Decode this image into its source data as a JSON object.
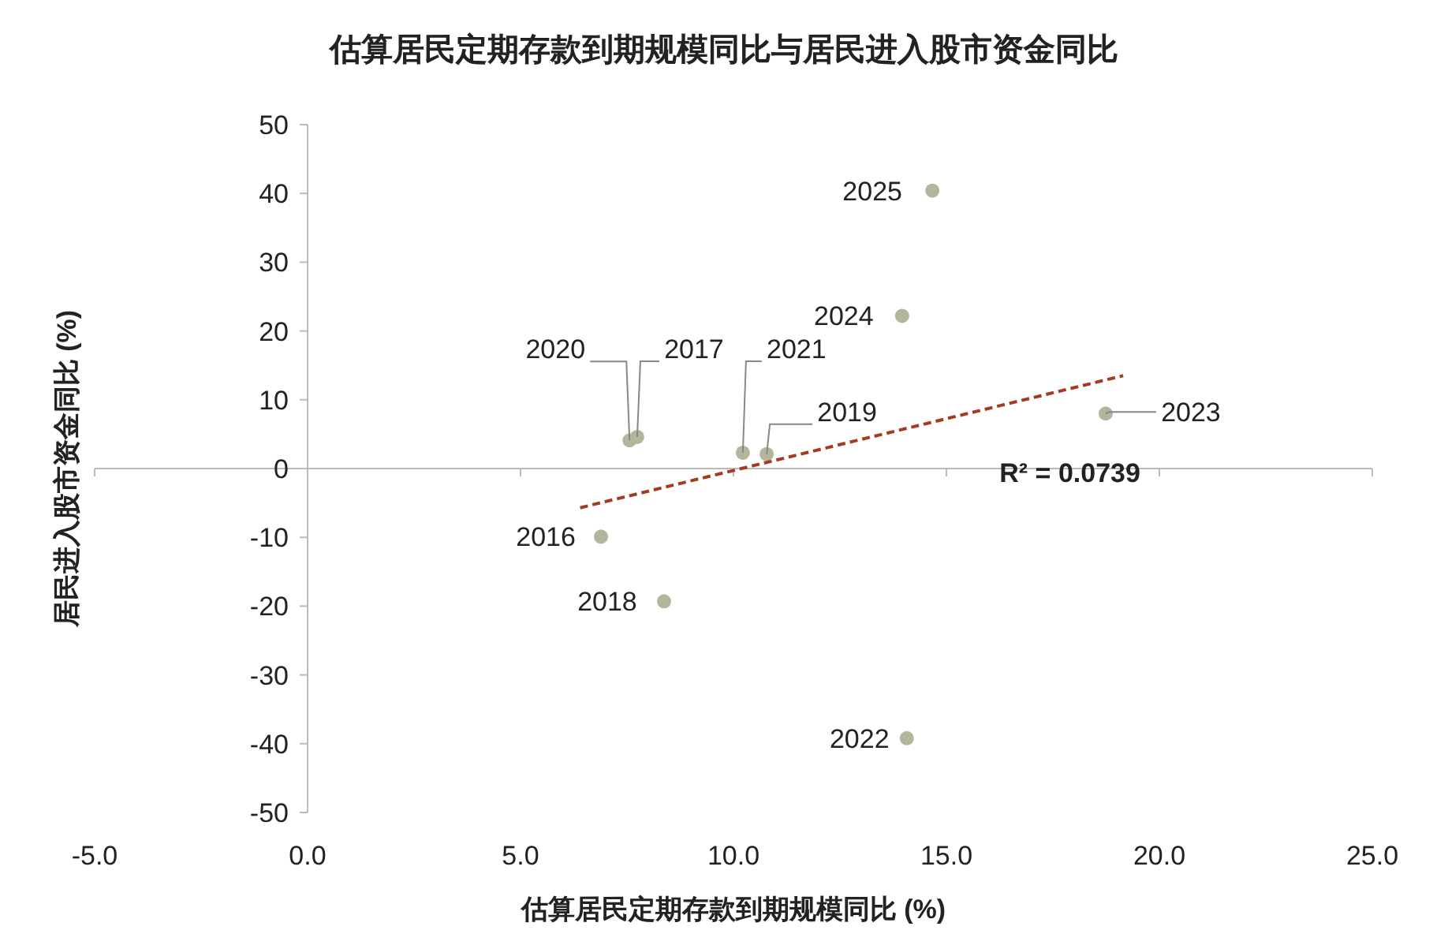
{
  "chart_data": {
    "type": "scatter",
    "title": "估算居民定期存款到期规模同比与居民进入股市资金同比",
    "xlabel": "估算居民定期存款到期规模同比 (%)",
    "ylabel": "居民进入股市资金同比 (%)",
    "xlim": [
      -5,
      25
    ],
    "xticks": [
      {
        "value": -5,
        "label": "-5.0"
      },
      {
        "value": 0,
        "label": "0.0"
      },
      {
        "value": 5,
        "label": "5.0"
      },
      {
        "value": 10,
        "label": "10.0"
      },
      {
        "value": 15,
        "label": "15.0"
      },
      {
        "value": 20,
        "label": "20.0"
      },
      {
        "value": 25,
        "label": "25.0"
      }
    ],
    "ylim": [
      -50,
      50
    ],
    "yticks": [
      -50,
      -40,
      -30,
      -20,
      -10,
      0,
      10,
      20,
      30,
      40,
      50
    ],
    "series": [
      {
        "marker": "circle",
        "color": "#b3b59c",
        "x": [
          6.89,
          7.74,
          8.37,
          10.78,
          7.56,
          10.22,
          14.07,
          18.74,
          13.96,
          14.67
        ],
        "values": [
          -9.9,
          4.6,
          -19.3,
          2.1,
          4.1,
          2.3,
          -39.2,
          8.0,
          22.2,
          40.4
        ]
      },
      {
        "type": "line",
        "line_style": "dashed",
        "color": "#a33b22",
        "x": [
          6.4,
          19.15
        ],
        "values": [
          -5.7,
          13.5
        ]
      }
    ],
    "annotations": [
      {
        "text": "2016",
        "x": 6.89,
        "y": -9.9
      },
      {
        "text": "2017",
        "x": 7.74,
        "y": 4.6
      },
      {
        "text": "2018",
        "x": 8.37,
        "y": -19.3
      },
      {
        "text": "2019",
        "x": 10.78,
        "y": 2.1
      },
      {
        "text": "2020",
        "x": 7.56,
        "y": 4.1
      },
      {
        "text": "2021",
        "x": 10.22,
        "y": 2.3
      },
      {
        "text": "2022",
        "x": 14.07,
        "y": -39.2
      },
      {
        "text": "2023",
        "x": 18.74,
        "y": 8.0
      },
      {
        "text": "2024",
        "x": 13.96,
        "y": 22.2
      },
      {
        "text": "2025",
        "x": 14.67,
        "y": 40.4
      },
      "R² = 0.0739"
    ]
  }
}
